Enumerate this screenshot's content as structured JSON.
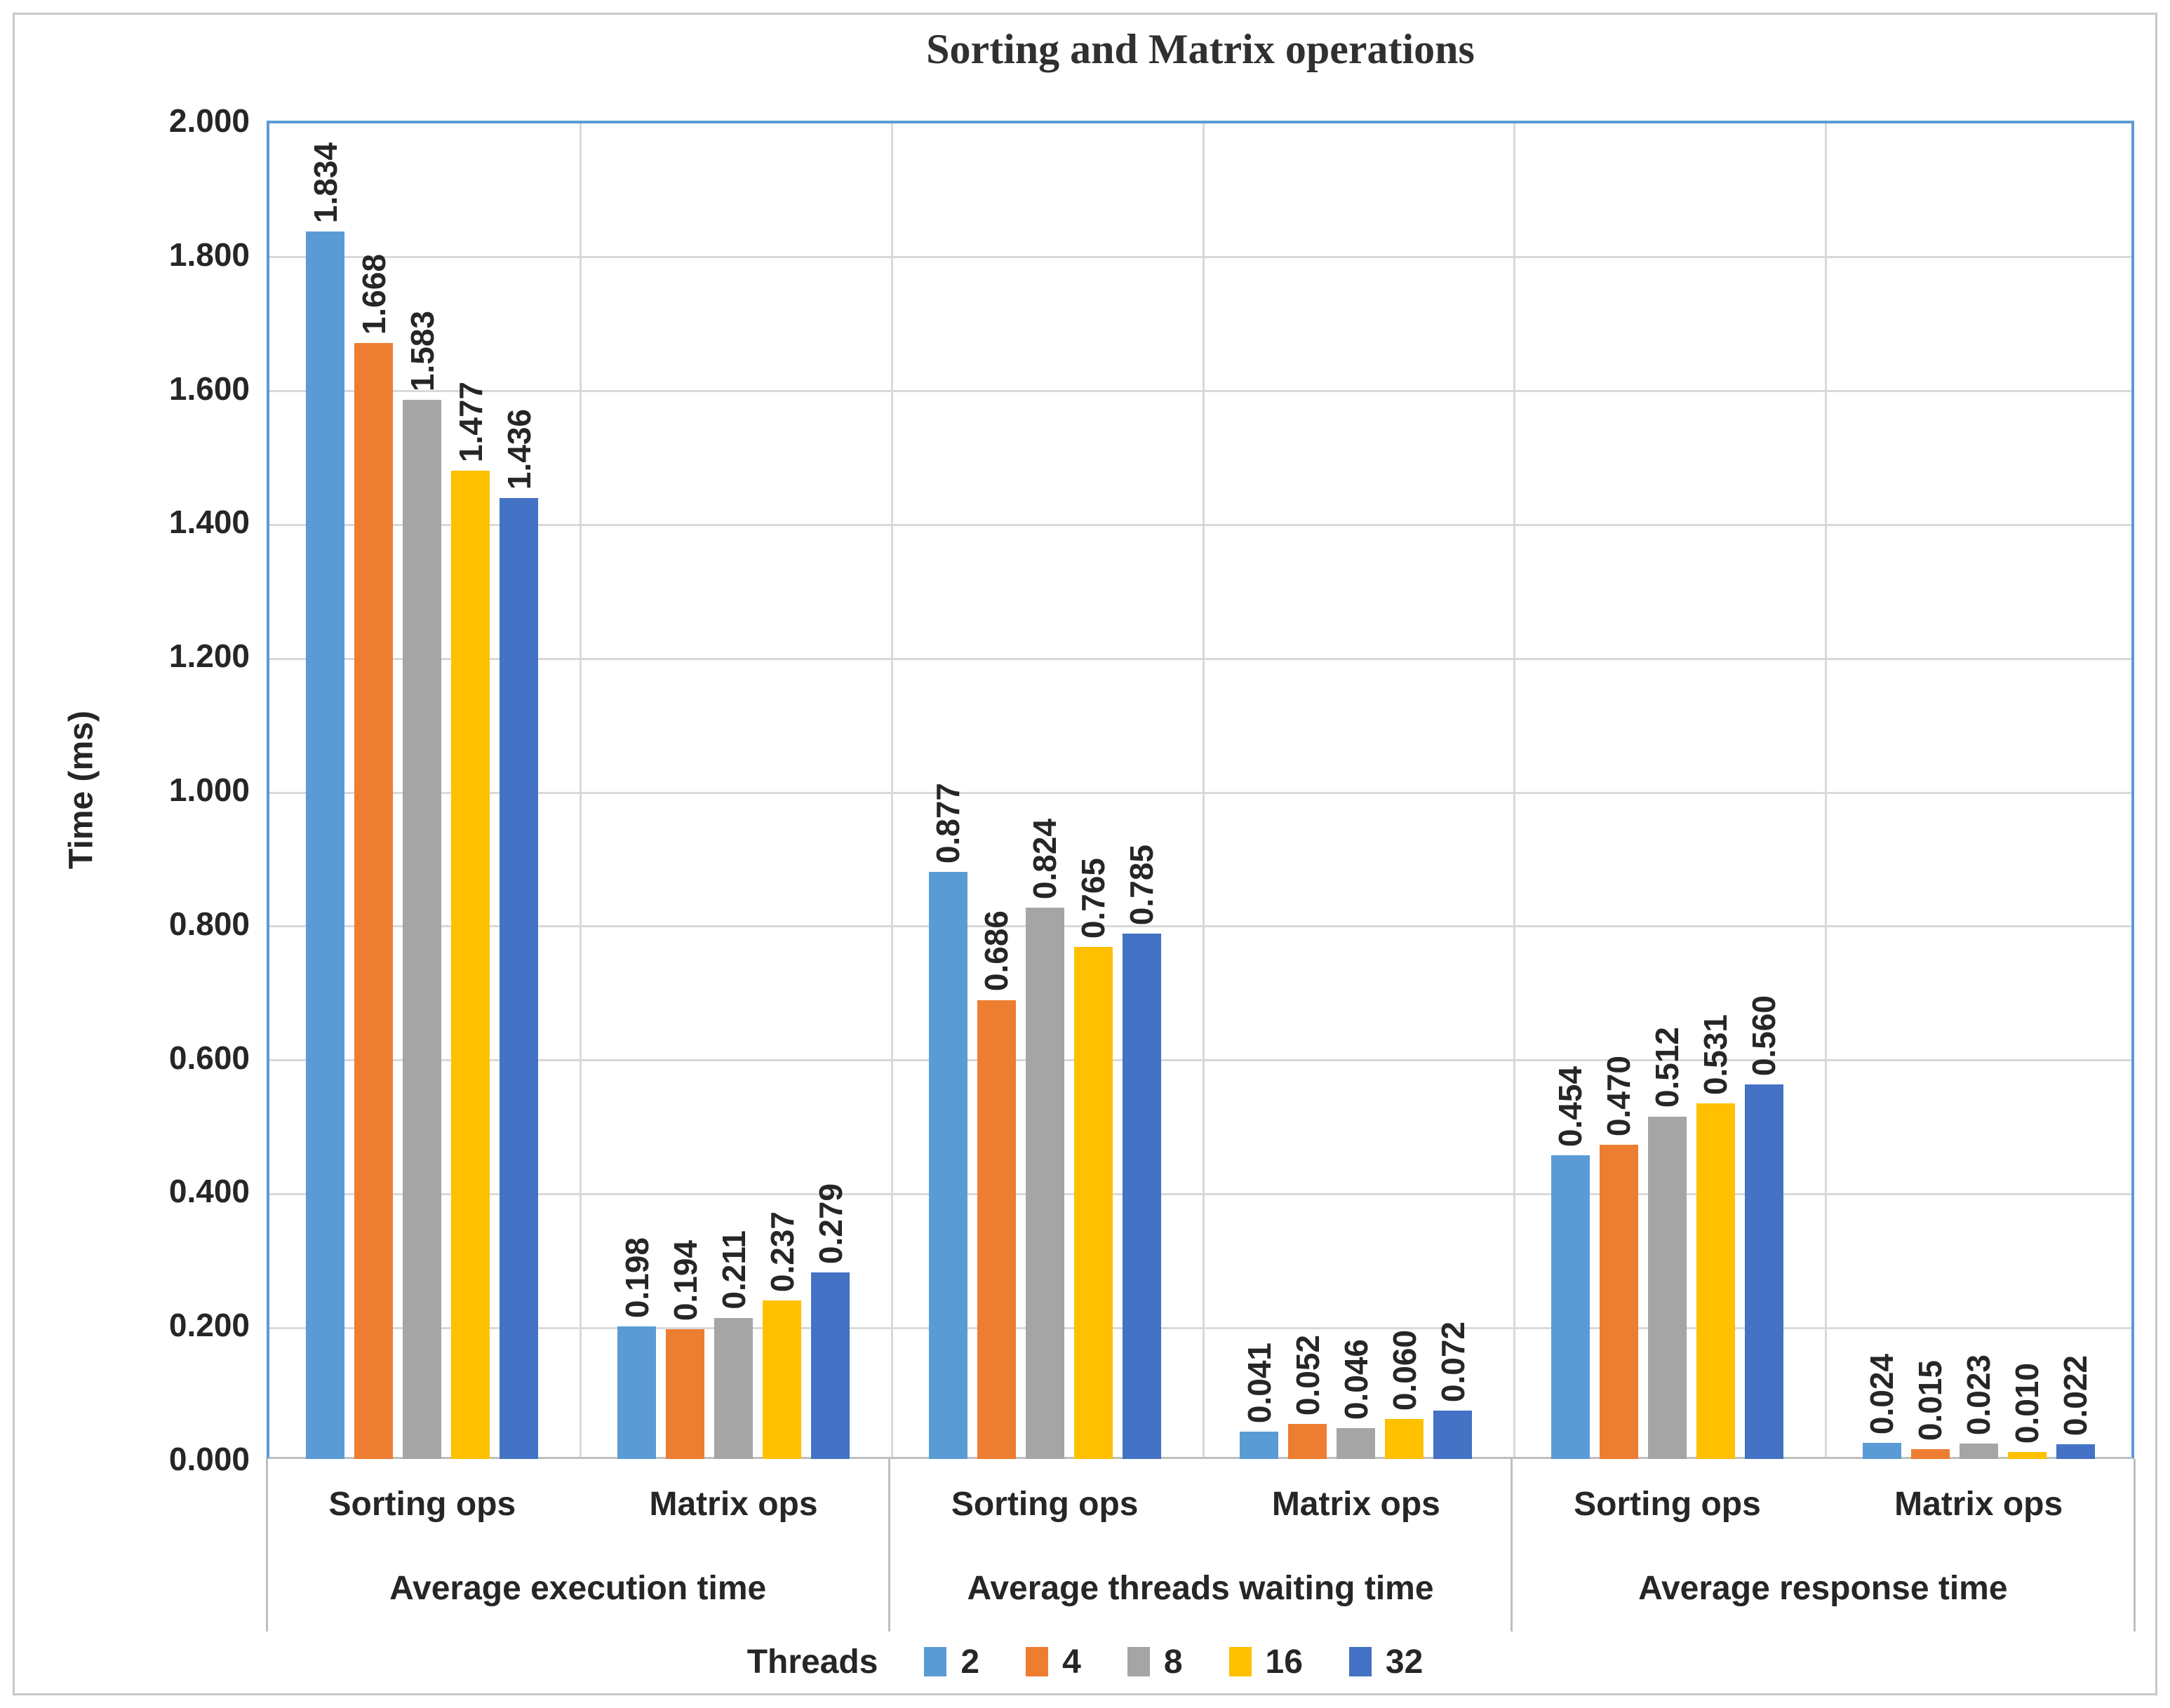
{
  "chart_data": {
    "type": "bar",
    "title": "Sorting and Matrix operations",
    "ylabel": "Time (ms)",
    "ylim": [
      0,
      2.0
    ],
    "ytick_step": 0.2,
    "ytick_decimals": 3,
    "value_label_decimals": 3,
    "grid": true,
    "legend_position": "bottom",
    "legend_title": "Threads",
    "series": [
      {
        "name": "2",
        "color": "#5B9BD5"
      },
      {
        "name": "4",
        "color": "#ED7D31"
      },
      {
        "name": "8",
        "color": "#A5A5A5"
      },
      {
        "name": "16",
        "color": "#FFC000"
      },
      {
        "name": "32",
        "color": "#4472C4"
      }
    ],
    "groups": [
      {
        "label": "Average execution time",
        "clusters": [
          {
            "label": "Sorting ops",
            "values": [
              1.834,
              1.668,
              1.583,
              1.477,
              1.436
            ]
          },
          {
            "label": "Matrix ops",
            "values": [
              0.198,
              0.194,
              0.211,
              0.237,
              0.279
            ]
          }
        ]
      },
      {
        "label": "Average threads waiting time",
        "clusters": [
          {
            "label": "Sorting ops",
            "values": [
              0.877,
              0.686,
              0.824,
              0.765,
              0.785
            ]
          },
          {
            "label": "Matrix ops",
            "values": [
              0.041,
              0.052,
              0.046,
              0.06,
              0.072
            ]
          }
        ]
      },
      {
        "label": "Average response time",
        "clusters": [
          {
            "label": "Sorting ops",
            "values": [
              0.454,
              0.47,
              0.512,
              0.531,
              0.56
            ]
          },
          {
            "label": "Matrix ops",
            "values": [
              0.024,
              0.015,
              0.023,
              0.01,
              0.022
            ]
          }
        ]
      }
    ],
    "colors": {
      "gridline": "#D9D9D9",
      "axis_line": "#BFBFBF",
      "plot_border": "#5B9BD5",
      "text": "#262626",
      "figure_border": "#C9C9C9"
    }
  }
}
